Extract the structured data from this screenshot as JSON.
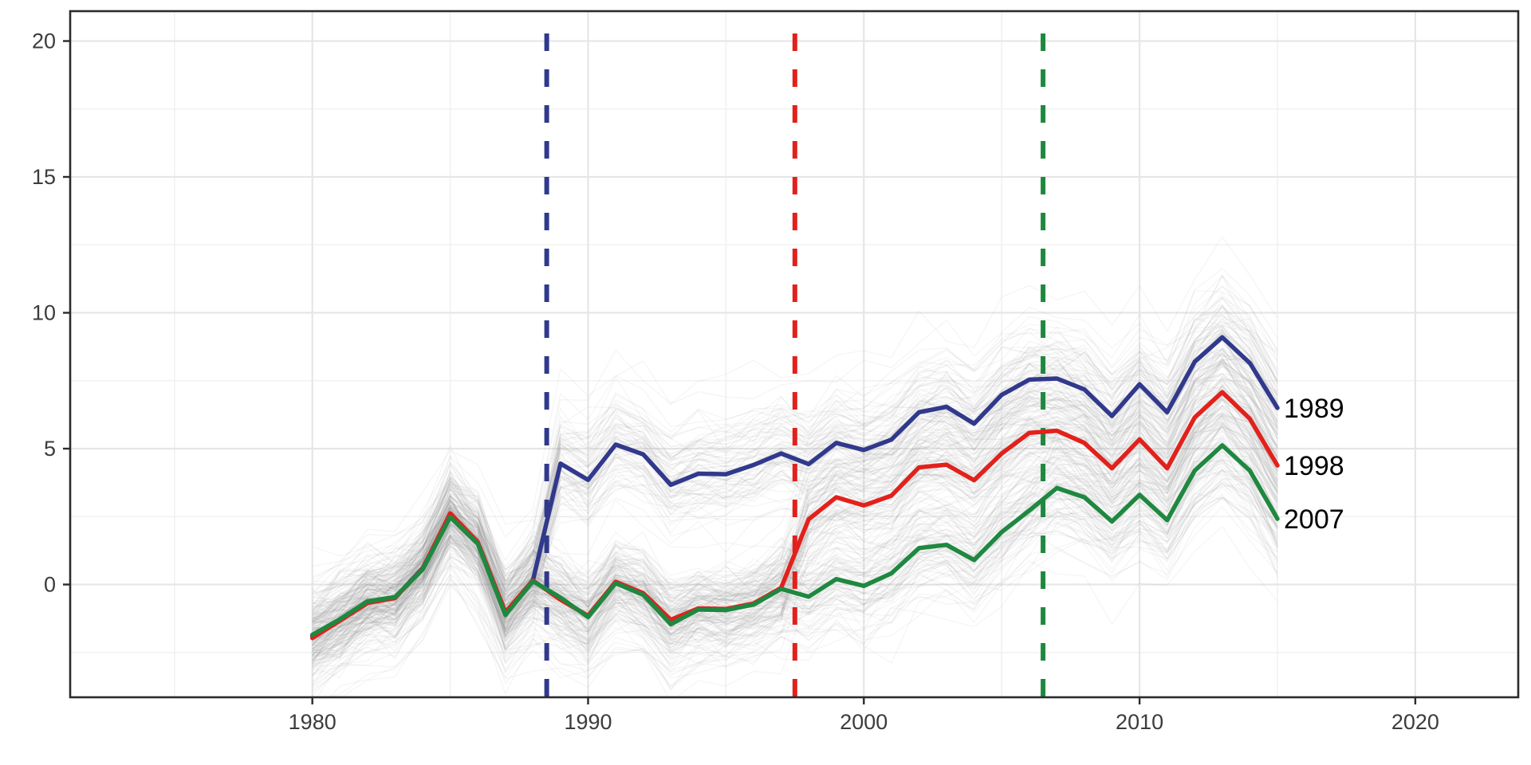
{
  "chart_data": {
    "type": "line",
    "title": "",
    "xlabel": "",
    "ylabel": "",
    "x": [
      1980,
      1981,
      1982,
      1983,
      1984,
      1985,
      1986,
      1987,
      1988,
      1989,
      1990,
      1991,
      1992,
      1993,
      1994,
      1995,
      1996,
      1997,
      1998,
      1999,
      2000,
      2001,
      2002,
      2003,
      2004,
      2005,
      2006,
      2007,
      2008,
      2009,
      2010,
      2011,
      2012,
      2013,
      2014,
      2015
    ],
    "series": [
      {
        "name": "1989",
        "color": "#31398C",
        "treatment_year": 1989,
        "values": [
          -1.9,
          -1.3,
          -0.65,
          -0.48,
          0.6,
          2.52,
          1.52,
          -1.05,
          0.15,
          4.45,
          3.85,
          5.15,
          4.79,
          3.67,
          4.08,
          4.06,
          4.4,
          4.82,
          4.43,
          5.21,
          4.95,
          5.33,
          6.34,
          6.54,
          5.92,
          6.98,
          7.54,
          7.58,
          7.18,
          6.2,
          7.37,
          6.34,
          8.2,
          9.1,
          8.15,
          6.5
        ]
      },
      {
        "name": "1998",
        "color": "#E2211C",
        "treatment_year": 1998,
        "values": [
          -1.97,
          -1.33,
          -0.68,
          -0.5,
          0.58,
          2.62,
          1.56,
          -1.02,
          0.15,
          -0.56,
          -1.15,
          0.1,
          -0.32,
          -1.3,
          -0.88,
          -0.9,
          -0.7,
          -0.12,
          2.4,
          3.21,
          2.91,
          3.27,
          4.31,
          4.41,
          3.84,
          4.82,
          5.58,
          5.66,
          5.21,
          4.28,
          5.34,
          4.28,
          6.15,
          7.08,
          6.1,
          4.38
        ]
      },
      {
        "name": "2007",
        "color": "#1F8840",
        "treatment_year": 2007,
        "values": [
          -1.85,
          -1.28,
          -0.62,
          -0.46,
          0.55,
          2.48,
          1.5,
          -1.12,
          0.12,
          -0.48,
          -1.2,
          0.05,
          -0.38,
          -1.46,
          -0.92,
          -0.94,
          -0.74,
          -0.16,
          -0.45,
          0.2,
          -0.05,
          0.41,
          1.34,
          1.46,
          0.9,
          1.93,
          2.72,
          3.55,
          3.21,
          2.32,
          3.3,
          2.37,
          4.19,
          5.12,
          4.19,
          2.42
        ]
      }
    ],
    "treatment_lines": [
      {
        "x": 1988.5,
        "color": "#31398C"
      },
      {
        "x": 1997.5,
        "color": "#E2211C"
      },
      {
        "x": 2006.5,
        "color": "#1F8840"
      }
    ],
    "x_ticks": [
      1980,
      1990,
      2000,
      2010,
      2020
    ],
    "x_minor_ticks": [
      1975,
      1985,
      1995,
      2005,
      2015
    ],
    "y_ticks": [
      0,
      5,
      10,
      15,
      20
    ],
    "y_minor_ticks": [
      -2.5,
      2.5,
      7.5,
      12.5,
      17.5
    ],
    "xlim": [
      1971.2,
      2023.7
    ],
    "ylim": [
      -4.15,
      21.1
    ],
    "grid": true,
    "legend_position": "direct-end-labels-right",
    "background_lines": {
      "description": "gray spaghetti of simulated unit-level trajectories around each cohort mean",
      "per_cohort": 85,
      "color": "#8F8F8F",
      "opacity": 0.085,
      "width": 1.3,
      "intercept_sd": 0.8,
      "noise_sd": 0.35,
      "post_effect_sd": 0.55,
      "seed": 11
    },
    "styles": {
      "background": "#FFFFFF",
      "panel_border_color": "#2B2B2B",
      "grid_major_color": "#E6E6E6",
      "grid_minor_color": "#F1F1F1",
      "axis_text_color": "#3C3C3C",
      "end_label_color": "#000000",
      "series_width": 5.5,
      "dash_width": 6,
      "dash_pattern": "22 23",
      "axis_font_size": 27,
      "end_label_font_size": 34
    }
  }
}
